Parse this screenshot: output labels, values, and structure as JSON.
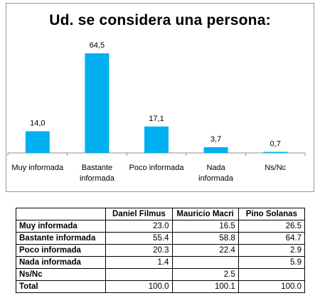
{
  "chart_data": {
    "type": "bar",
    "title": "Ud. se considera una persona:",
    "categories": [
      "Muy informada",
      "Bastante\ninformada",
      "Poco informada",
      "Nada\ninformada",
      "Ns/Nc"
    ],
    "values": [
      14.0,
      64.5,
      17.1,
      3.7,
      0.7
    ],
    "value_labels": [
      "14,0",
      "64,5",
      "17,1",
      "3,7",
      "0,7"
    ],
    "ylim": [
      0,
      70
    ],
    "grid": false,
    "legend": "none",
    "bar_color": "#00b0f0"
  },
  "table": {
    "columns": [
      "Daniel Filmus",
      "Mauricio Macri",
      "Pino Solanas"
    ],
    "rows": [
      {
        "label": "Muy informada",
        "values": [
          "23.0",
          "16.5",
          "26.5"
        ]
      },
      {
        "label": "Bastante informada",
        "values": [
          "55.4",
          "58.8",
          "64.7"
        ]
      },
      {
        "label": "Poco informada",
        "values": [
          "20.3",
          "22.4",
          "2.9"
        ]
      },
      {
        "label": "Nada informada",
        "values": [
          "1.4",
          "",
          "5.9"
        ]
      },
      {
        "label": "Ns/Nc",
        "values": [
          "",
          "2.5",
          ""
        ]
      },
      {
        "label": "Total",
        "values": [
          "100.0",
          "100.1",
          "100.0"
        ]
      }
    ]
  }
}
